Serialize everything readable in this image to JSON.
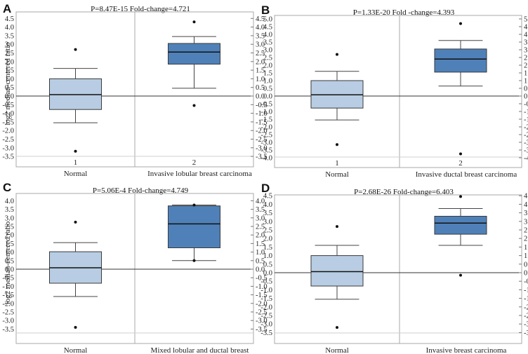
{
  "figure": {
    "ylabel": "log2 median-centered ratio"
  },
  "colors": {
    "normal_box": "#b8cde3",
    "cancer_box": "#4f81b8",
    "frame": "#a9a9a9",
    "axis": "#222222"
  },
  "chart_data": [
    {
      "panel_letter": "A",
      "type": "box",
      "title": "P=8.47E-15  Fold-change=4.721",
      "ylim": [
        -3.75,
        4.6
      ],
      "ticks": [
        "4.5",
        "4.0",
        "3.5",
        "3.0",
        "2.5",
        "2.0",
        "1.5",
        "1.0",
        "0.5",
        "0.0",
        "-0.5",
        "-1.0",
        "-1.5",
        "-2.0",
        "-2.5",
        "-3.0",
        "-3.5"
      ],
      "tick_values": [
        4.5,
        4.0,
        3.5,
        3.0,
        2.5,
        2.0,
        1.5,
        1.0,
        0.5,
        0.0,
        -0.5,
        -1.0,
        -1.5,
        -2.0,
        -2.5,
        -3.0,
        -3.5
      ],
      "show_ylabel": true,
      "group_numbers": [
        "1",
        "2"
      ],
      "categories": [
        "Normal",
        "Invasive lobular breast carcinoma"
      ],
      "boxes": [
        {
          "name": "Normal",
          "whisker_low": -1.55,
          "q1": -0.78,
          "median": 0.08,
          "q3": 1.0,
          "whisker_high": 1.6,
          "outliers": [
            2.7,
            -3.2
          ]
        },
        {
          "name": "Invasive lobular breast carcinoma",
          "whisker_low": 0.45,
          "q1": 1.85,
          "median": 2.55,
          "q3": 3.05,
          "whisker_high": 3.45,
          "outliers": [
            4.3,
            -0.55
          ]
        }
      ]
    },
    {
      "panel_letter": "B",
      "type": "box",
      "title": "P=1.33E-20  Fold -change=4.393",
      "ylim": [
        -4.25,
        5.1
      ],
      "ticks": [
        "5.0",
        "4.5",
        "4.0",
        "3.5",
        "3.0",
        "2.5",
        "2.0",
        "1.5",
        "1.0",
        "0.5",
        "0.0",
        "-0.5",
        "-1.0",
        "-1.5",
        "-2.0",
        "-2.5",
        "-3.0",
        "-3.5",
        "-4.0"
      ],
      "tick_values": [
        5.0,
        4.5,
        4.0,
        3.5,
        3.0,
        2.5,
        2.0,
        1.5,
        1.0,
        0.5,
        0.0,
        -0.5,
        -1.0,
        -1.5,
        -2.0,
        -2.5,
        -3.0,
        -3.5,
        -4.0
      ],
      "show_ylabel": false,
      "group_numbers": [
        "1",
        "2"
      ],
      "categories": [
        "Normal",
        "Invasive ductal breast carcinoma"
      ],
      "boxes": [
        {
          "name": "Normal",
          "whisker_low": -1.55,
          "q1": -0.78,
          "median": 0.08,
          "q3": 1.0,
          "whisker_high": 1.6,
          "outliers": [
            2.7,
            -3.15
          ]
        },
        {
          "name": "Invasive ductal breast carcinoma",
          "whisker_low": 0.65,
          "q1": 1.55,
          "median": 2.4,
          "q3": 3.05,
          "whisker_high": 3.6,
          "outliers": [
            4.7,
            -3.75
          ]
        }
      ]
    },
    {
      "panel_letter": "C",
      "type": "box",
      "title": "P=5.06E-4  Fold-change=4.749",
      "ylim": [
        -3.75,
        4.1
      ],
      "ticks": [
        "4.0",
        "3.5",
        "3.0",
        "2.5",
        "2.0",
        "1.5",
        "1.0",
        "0.5",
        "0.0",
        "-0.5",
        "-1.0",
        "-1.5",
        "-2.0",
        "-2.5",
        "-3.0",
        "-3.5"
      ],
      "tick_values": [
        4.0,
        3.5,
        3.0,
        2.5,
        2.0,
        1.5,
        1.0,
        0.5,
        0.0,
        -0.5,
        -1.0,
        -1.5,
        -2.0,
        -2.5,
        -3.0,
        -3.5
      ],
      "show_ylabel": true,
      "group_numbers": [
        "",
        ""
      ],
      "categories": [
        "Normal",
        "Mixed lobular and ductal breast"
      ],
      "boxes": [
        {
          "name": "Normal",
          "whisker_low": -1.6,
          "q1": -0.82,
          "median": 0.08,
          "q3": 1.02,
          "whisker_high": 1.55,
          "outliers": [
            2.75,
            -3.4
          ]
        },
        {
          "name": "Mixed lobular and ductal breast",
          "whisker_low": 0.5,
          "q1": 1.25,
          "median": 2.65,
          "q3": 3.7,
          "whisker_high": 3.75,
          "outliers": [
            3.75,
            0.5
          ]
        }
      ]
    },
    {
      "panel_letter": "D",
      "type": "box",
      "title": "P=2.68E-26  Fold-change=6.403",
      "ylim": [
        -3.75,
        4.6
      ],
      "ticks": [
        "4.5",
        "4.0",
        "3.5",
        "3.0",
        "2.5",
        "2.0",
        "1.5",
        "1.0",
        "0.5",
        "0.0",
        "-0.5",
        "-1.0",
        "-1.5",
        "-2.0",
        "-2.5",
        "-3.0",
        "-3.5"
      ],
      "tick_values": [
        4.5,
        4.0,
        3.5,
        3.0,
        2.5,
        2.0,
        1.5,
        1.0,
        0.5,
        0.0,
        -0.5,
        -1.0,
        -1.5,
        -2.0,
        -2.5,
        -3.0,
        -3.5
      ],
      "show_ylabel": false,
      "group_numbers": [
        "",
        ""
      ],
      "categories": [
        "Normal",
        "Invasive breast carcinoma"
      ],
      "boxes": [
        {
          "name": "Normal",
          "whisker_low": -1.55,
          "q1": -0.78,
          "median": 0.06,
          "q3": 1.0,
          "whisker_high": 1.6,
          "outliers": [
            2.7,
            -3.2
          ]
        },
        {
          "name": "Invasive breast carcinoma",
          "whisker_low": 1.6,
          "q1": 2.25,
          "median": 2.9,
          "q3": 3.3,
          "whisker_high": 3.75,
          "outliers": [
            4.45,
            -0.15
          ]
        }
      ]
    }
  ]
}
